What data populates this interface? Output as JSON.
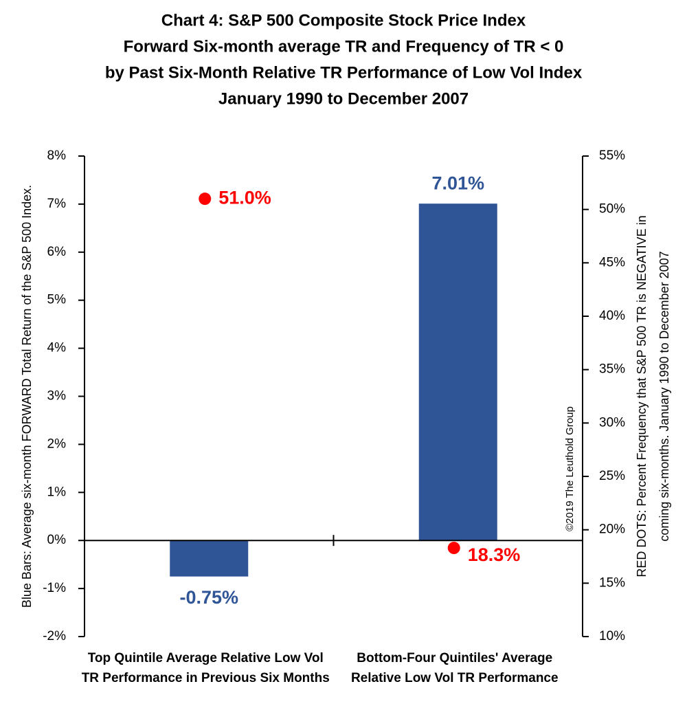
{
  "chart_data": {
    "type": "bar",
    "title": [
      "Chart 4: S&P 500 Composite Stock Price Index",
      "Forward Six-month average TR and Frequency of TR < 0",
      "by Past Six-Month Relative TR Performance of Low Vol Index",
      "January 1990 to December 2007"
    ],
    "ylabel": "Blue Bars: Average  six-month FORWARD Total Return of the S&P 500 Index.",
    "y2label": [
      "RED DOTS: Percent Frequency that S&P 500  TR is NEGATIVE in",
      "coming six-months. January 1990 to December 2007"
    ],
    "annotation": "©2019 The Leuthold Group",
    "categories": [
      "Top Quintile Average Relative Low Vol TR Performance in Previous Six Months",
      "Bottom-Four Quintiles' Average Relative Low Vol TR Performance"
    ],
    "series": [
      {
        "type": "bar",
        "color": "#2f5597",
        "values": [
          -0.75,
          7.01
        ],
        "value_labels": [
          "-0.75%",
          "7.01%"
        ]
      },
      {
        "type": "scatter",
        "axis": "y2",
        "color": "#ff0000",
        "values": [
          51.0,
          18.3
        ],
        "value_labels": [
          "51.0%",
          "18.3%"
        ]
      }
    ],
    "ylim": [
      -2,
      8
    ],
    "yticks": [
      {
        "value": -2,
        "label": "-2%"
      },
      {
        "value": -1,
        "label": "-1%"
      },
      {
        "value": 0,
        "label": "0%"
      },
      {
        "value": 1,
        "label": "1%"
      },
      {
        "value": 2,
        "label": "2%"
      },
      {
        "value": 3,
        "label": "3%"
      },
      {
        "value": 4,
        "label": "4%"
      },
      {
        "value": 5,
        "label": "5%"
      },
      {
        "value": 6,
        "label": "6%"
      },
      {
        "value": 7,
        "label": "7%"
      },
      {
        "value": 8,
        "label": "8%"
      }
    ],
    "y2lim": [
      10,
      55
    ],
    "y2ticks": [
      {
        "value": 10,
        "label": "10%"
      },
      {
        "value": 15,
        "label": "15%"
      },
      {
        "value": 20,
        "label": "20%"
      },
      {
        "value": 25,
        "label": "25%"
      },
      {
        "value": 30,
        "label": "30%"
      },
      {
        "value": 35,
        "label": "35%"
      },
      {
        "value": 40,
        "label": "40%"
      },
      {
        "value": 45,
        "label": "45%"
      },
      {
        "value": 50,
        "label": "50%"
      },
      {
        "value": 55,
        "label": "55%"
      }
    ],
    "grid": false
  }
}
